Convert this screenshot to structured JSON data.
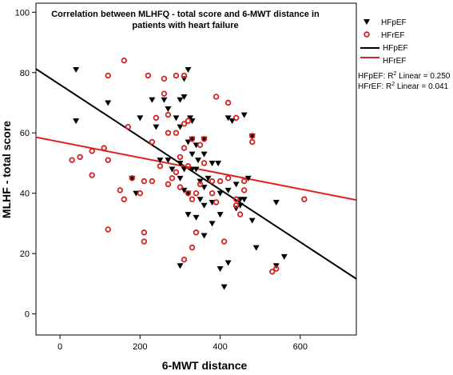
{
  "chart_data": {
    "type": "scatter",
    "title_lines": [
      "Correlation between MLHFQ - total score and 6-MWT distance in",
      "patients with heart failure"
    ],
    "xlabel": "6-MWT distance",
    "ylabel": "MLHF - total score",
    "xlim": [
      -60,
      740
    ],
    "ylim": [
      -7,
      103
    ],
    "xticks": [
      0,
      200,
      400,
      600
    ],
    "yticks": [
      0,
      20,
      40,
      60,
      80,
      100
    ],
    "grid": false,
    "legend_position": "right",
    "legend": [
      {
        "label": "HFpEF",
        "kind": "marker",
        "marker": "triangle-down",
        "color": "#000000"
      },
      {
        "label": "HFrEF",
        "kind": "marker",
        "marker": "circle-open",
        "color": "#d42020"
      },
      {
        "label": "HFpEF",
        "kind": "line",
        "color": "#000000"
      },
      {
        "label": "HFrEF",
        "kind": "line",
        "color": "#e02020"
      }
    ],
    "stats": [
      {
        "prefix": "HFpEF: R",
        "sup": "2",
        "suffix": " Linear = 0.250"
      },
      {
        "prefix": "HFrEF: R",
        "sup": "2",
        "suffix": " Linear = 0.041"
      }
    ],
    "series": [
      {
        "name": "HFpEF",
        "marker": "triangle-down",
        "color": "#000000",
        "points": [
          [
            40,
            81
          ],
          [
            40,
            64
          ],
          [
            120,
            70
          ],
          [
            200,
            65
          ],
          [
            230,
            71
          ],
          [
            260,
            71
          ],
          [
            270,
            68
          ],
          [
            290,
            65
          ],
          [
            300,
            62
          ],
          [
            310,
            72
          ],
          [
            320,
            81
          ],
          [
            310,
            78
          ],
          [
            325,
            65
          ],
          [
            330,
            64
          ],
          [
            320,
            57
          ],
          [
            340,
            56
          ],
          [
            330,
            53
          ],
          [
            345,
            51
          ],
          [
            360,
            53
          ],
          [
            380,
            50
          ],
          [
            395,
            50
          ],
          [
            360,
            58
          ],
          [
            300,
            50
          ],
          [
            310,
            48
          ],
          [
            280,
            48
          ],
          [
            330,
            48
          ],
          [
            370,
            45
          ],
          [
            300,
            45
          ],
          [
            310,
            41
          ],
          [
            320,
            40
          ],
          [
            350,
            38
          ],
          [
            380,
            37
          ],
          [
            360,
            36
          ],
          [
            340,
            32
          ],
          [
            320,
            33
          ],
          [
            400,
            40
          ],
          [
            420,
            41
          ],
          [
            440,
            43
          ],
          [
            450,
            38
          ],
          [
            460,
            38
          ],
          [
            470,
            45
          ],
          [
            430,
            64
          ],
          [
            460,
            66
          ],
          [
            420,
            65
          ],
          [
            480,
            59
          ],
          [
            400,
            33
          ],
          [
            440,
            35
          ],
          [
            450,
            36
          ],
          [
            480,
            31
          ],
          [
            490,
            22
          ],
          [
            420,
            17
          ],
          [
            400,
            15
          ],
          [
            410,
            9
          ],
          [
            540,
            37
          ],
          [
            360,
            26
          ],
          [
            300,
            16
          ],
          [
            380,
            30
          ],
          [
            540,
            16
          ],
          [
            560,
            19
          ],
          [
            180,
            45
          ],
          [
            190,
            40
          ],
          [
            250,
            51
          ],
          [
            270,
            51
          ],
          [
            330,
            58
          ],
          [
            240,
            62
          ],
          [
            300,
            71
          ],
          [
            340,
            48
          ],
          [
            350,
            44
          ],
          [
            360,
            42
          ]
        ]
      },
      {
        "name": "HFrEF",
        "marker": "circle-open",
        "color": "#d42020",
        "points": [
          [
            30,
            51
          ],
          [
            50,
            52
          ],
          [
            80,
            54
          ],
          [
            110,
            55
          ],
          [
            120,
            51
          ],
          [
            80,
            46
          ],
          [
            150,
            41
          ],
          [
            160,
            38
          ],
          [
            180,
            45
          ],
          [
            200,
            40
          ],
          [
            210,
            44
          ],
          [
            230,
            44
          ],
          [
            250,
            49
          ],
          [
            260,
            78
          ],
          [
            290,
            79
          ],
          [
            260,
            73
          ],
          [
            310,
            79
          ],
          [
            220,
            79
          ],
          [
            160,
            84
          ],
          [
            120,
            79
          ],
          [
            270,
            66
          ],
          [
            240,
            65
          ],
          [
            230,
            57
          ],
          [
            270,
            60
          ],
          [
            290,
            60
          ],
          [
            310,
            63
          ],
          [
            320,
            64
          ],
          [
            330,
            58
          ],
          [
            350,
            56
          ],
          [
            360,
            58
          ],
          [
            390,
            72
          ],
          [
            420,
            70
          ],
          [
            440,
            65
          ],
          [
            480,
            59
          ],
          [
            480,
            57
          ],
          [
            310,
            55
          ],
          [
            300,
            52
          ],
          [
            290,
            47
          ],
          [
            280,
            45
          ],
          [
            270,
            43
          ],
          [
            300,
            42
          ],
          [
            320,
            40
          ],
          [
            330,
            38
          ],
          [
            340,
            40
          ],
          [
            380,
            44
          ],
          [
            400,
            44
          ],
          [
            420,
            45
          ],
          [
            440,
            38
          ],
          [
            460,
            41
          ],
          [
            460,
            44
          ],
          [
            440,
            36
          ],
          [
            390,
            37
          ],
          [
            380,
            40
          ],
          [
            450,
            33
          ],
          [
            410,
            24
          ],
          [
            340,
            27
          ],
          [
            310,
            18
          ],
          [
            330,
            22
          ],
          [
            210,
            27
          ],
          [
            210,
            24
          ],
          [
            120,
            28
          ],
          [
            530,
            14
          ],
          [
            540,
            15
          ],
          [
            610,
            38
          ],
          [
            170,
            62
          ],
          [
            360,
            50
          ],
          [
            320,
            49
          ],
          [
            350,
            43
          ]
        ]
      }
    ],
    "fit_lines": [
      {
        "name": "HFpEF",
        "color": "#000000",
        "intercept": 76.0,
        "slope": -0.087
      },
      {
        "name": "HFrEF",
        "color": "#e02020",
        "intercept": 57.0,
        "slope": -0.026
      }
    ]
  }
}
